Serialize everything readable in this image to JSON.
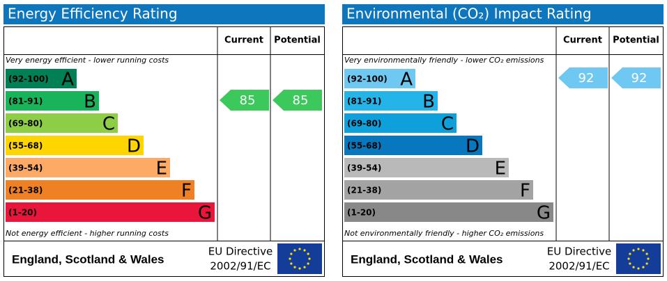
{
  "panels": [
    {
      "title": "Energy Efficiency Rating",
      "headers": [
        "Current",
        "Potential"
      ],
      "top_note": "Very energy efficient - lower running costs",
      "bottom_note": "Not energy efficient - higher running costs",
      "bands": [
        {
          "range": "(92-100)",
          "letter": "A",
          "color": "#008054"
        },
        {
          "range": "(81-91)",
          "letter": "B",
          "color": "#19b459"
        },
        {
          "range": "(69-80)",
          "letter": "C",
          "color": "#8dce46"
        },
        {
          "range": "(55-68)",
          "letter": "D",
          "color": "#ffd500"
        },
        {
          "range": "(39-54)",
          "letter": "E",
          "color": "#fcaa65"
        },
        {
          "range": "(21-38)",
          "letter": "F",
          "color": "#ef8023"
        },
        {
          "range": "(1-20)",
          "letter": "G",
          "color": "#e9153b"
        }
      ],
      "current": 85,
      "potential": 85,
      "arrow_color": "#3cc85a",
      "footer": {
        "region": "England, Scotland & Wales",
        "directive": [
          "EU Directive",
          "2002/91/EC"
        ]
      }
    },
    {
      "title": "Environmental (CO₂) Impact Rating",
      "headers": [
        "Current",
        "Potential"
      ],
      "top_note": "Very environmentally friendly - lower CO₂ emissions",
      "bottom_note": "Not environmentally friendly - higher CO₂ emissions",
      "bands": [
        {
          "range": "(92-100)",
          "letter": "A",
          "color": "#6ec8f2"
        },
        {
          "range": "(81-91)",
          "letter": "B",
          "color": "#25b4e8"
        },
        {
          "range": "(69-80)",
          "letter": "C",
          "color": "#0ea0db"
        },
        {
          "range": "(55-68)",
          "letter": "D",
          "color": "#0878be"
        },
        {
          "range": "(39-54)",
          "letter": "E",
          "color": "#b9b9b9"
        },
        {
          "range": "(21-38)",
          "letter": "F",
          "color": "#a3a3a3"
        },
        {
          "range": "(1-20)",
          "letter": "G",
          "color": "#888888"
        }
      ],
      "current": 92,
      "potential": 92,
      "arrow_color": "#6ec8f2",
      "footer": {
        "region": "England, Scotland & Wales",
        "directive": [
          "EU Directive",
          "2002/91/EC"
        ]
      }
    }
  ]
}
